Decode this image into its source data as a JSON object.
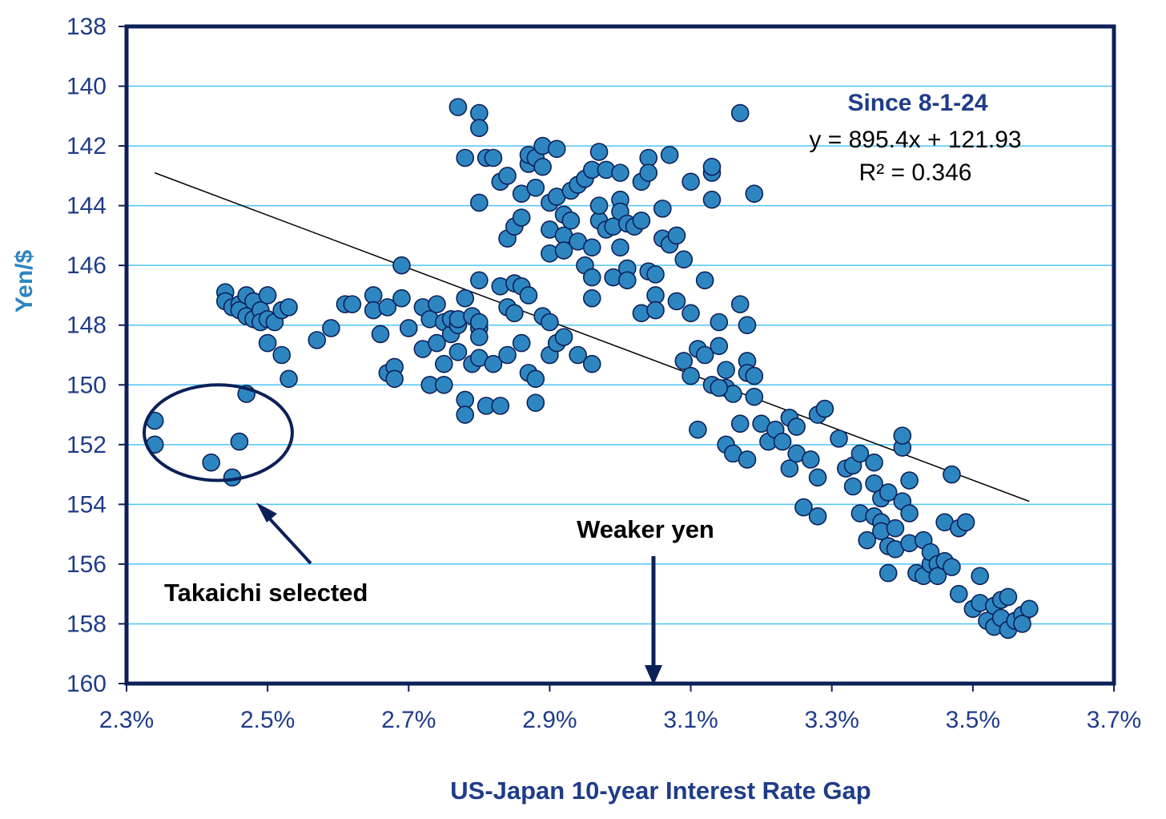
{
  "chart_data": {
    "type": "scatter",
    "title": "",
    "xlabel": "US-Japan 10-year Interest Rate Gap",
    "ylabel": "Yen/$",
    "xlim": [
      2.3,
      3.7
    ],
    "ylim": [
      138,
      160
    ],
    "y_inverted": true,
    "grid": "horizontal",
    "x_ticks": [
      {
        "value": 2.3,
        "label": "2.3%"
      },
      {
        "value": 2.5,
        "label": "2.5%"
      },
      {
        "value": 2.7,
        "label": "2.7%"
      },
      {
        "value": 2.9,
        "label": "2.9%"
      },
      {
        "value": 3.1,
        "label": "3.1%"
      },
      {
        "value": 3.3,
        "label": "3.3%"
      },
      {
        "value": 3.5,
        "label": "3.5%"
      },
      {
        "value": 3.7,
        "label": "3.7%"
      }
    ],
    "y_ticks": [
      {
        "value": 138,
        "label": "138"
      },
      {
        "value": 140,
        "label": "140"
      },
      {
        "value": 142,
        "label": "142"
      },
      {
        "value": 144,
        "label": "144"
      },
      {
        "value": 146,
        "label": "146"
      },
      {
        "value": 148,
        "label": "148"
      },
      {
        "value": 150,
        "label": "150"
      },
      {
        "value": 152,
        "label": "152"
      },
      {
        "value": 154,
        "label": "154"
      },
      {
        "value": 156,
        "label": "156"
      },
      {
        "value": 158,
        "label": "158"
      },
      {
        "value": 160,
        "label": "160"
      }
    ],
    "colors": {
      "marker_fill": "#2e86c1",
      "marker_edge": "#0c2058",
      "frame": "#0c2058",
      "grid": "#4fc3f7",
      "ticks": "#1f3c88",
      "ylabel": "#2e86c1",
      "trendline": "#000000"
    },
    "trendline": {
      "x_start": 2.34,
      "y_start": 142.9,
      "x_end": 3.58,
      "y_end": 153.9
    },
    "annotations": {
      "legend_title": "Since 8-1-24",
      "equation": "y = 895.4x + 121.93",
      "r_squared": "R² = 0.346",
      "takaichi": "Takaichi selected",
      "weaker_yen": "Weaker yen"
    },
    "highlight": {
      "label": "Takaichi selected",
      "cx": 2.43,
      "cy": 151.6,
      "rx": 0.105,
      "ry": 1.6
    },
    "series": [
      {
        "name": "",
        "points": [
          [
            2.34,
            151.2
          ],
          [
            2.34,
            152.0
          ],
          [
            2.42,
            152.6
          ],
          [
            2.45,
            153.1
          ],
          [
            2.46,
            151.9
          ],
          [
            2.47,
            150.3
          ],
          [
            2.44,
            146.9
          ],
          [
            2.44,
            147.2
          ],
          [
            2.45,
            147.4
          ],
          [
            2.46,
            147.3
          ],
          [
            2.46,
            147.5
          ],
          [
            2.47,
            147.0
          ],
          [
            2.47,
            147.7
          ],
          [
            2.48,
            147.8
          ],
          [
            2.48,
            147.2
          ],
          [
            2.49,
            147.5
          ],
          [
            2.49,
            147.9
          ],
          [
            2.5,
            147.0
          ],
          [
            2.5,
            147.8
          ],
          [
            2.51,
            147.9
          ],
          [
            2.52,
            147.5
          ],
          [
            2.53,
            147.4
          ],
          [
            2.5,
            148.6
          ],
          [
            2.52,
            149.0
          ],
          [
            2.53,
            149.8
          ],
          [
            2.57,
            148.5
          ],
          [
            2.59,
            148.1
          ],
          [
            2.61,
            147.3
          ],
          [
            2.62,
            147.3
          ],
          [
            2.65,
            147.0
          ],
          [
            2.65,
            147.5
          ],
          [
            2.66,
            148.3
          ],
          [
            2.67,
            147.4
          ],
          [
            2.67,
            149.6
          ],
          [
            2.68,
            149.4
          ],
          [
            2.68,
            149.8
          ],
          [
            2.69,
            146.0
          ],
          [
            2.69,
            147.1
          ],
          [
            2.7,
            148.1
          ],
          [
            2.72,
            148.8
          ],
          [
            2.72,
            147.4
          ],
          [
            2.73,
            150.0
          ],
          [
            2.73,
            147.8
          ],
          [
            2.74,
            147.3
          ],
          [
            2.74,
            148.6
          ],
          [
            2.75,
            149.3
          ],
          [
            2.75,
            147.9
          ],
          [
            2.75,
            150.0
          ],
          [
            2.76,
            148.3
          ],
          [
            2.76,
            147.8
          ],
          [
            2.77,
            148.9
          ],
          [
            2.77,
            148.0
          ],
          [
            2.77,
            147.8
          ],
          [
            2.78,
            150.5
          ],
          [
            2.78,
            151.0
          ],
          [
            2.78,
            147.1
          ],
          [
            2.79,
            149.3
          ],
          [
            2.79,
            147.7
          ],
          [
            2.8,
            148.1
          ],
          [
            2.8,
            147.9
          ],
          [
            2.8,
            148.4
          ],
          [
            2.8,
            149.1
          ],
          [
            2.8,
            146.5
          ],
          [
            2.81,
            150.7
          ],
          [
            2.82,
            149.3
          ],
          [
            2.83,
            150.7
          ],
          [
            2.83,
            146.7
          ],
          [
            2.84,
            149.0
          ],
          [
            2.84,
            147.4
          ],
          [
            2.85,
            146.6
          ],
          [
            2.85,
            147.6
          ],
          [
            2.86,
            148.6
          ],
          [
            2.86,
            146.7
          ],
          [
            2.87,
            147.0
          ],
          [
            2.87,
            149.6
          ],
          [
            2.88,
            149.8
          ],
          [
            2.88,
            150.6
          ],
          [
            2.89,
            147.7
          ],
          [
            2.9,
            147.9
          ],
          [
            2.9,
            149.0
          ],
          [
            2.91,
            148.6
          ],
          [
            2.92,
            148.4
          ],
          [
            2.94,
            149.0
          ],
          [
            2.96,
            149.3
          ],
          [
            2.96,
            147.1
          ],
          [
            2.77,
            140.7
          ],
          [
            2.8,
            140.9
          ],
          [
            2.8,
            141.4
          ],
          [
            2.78,
            142.4
          ],
          [
            2.81,
            142.4
          ],
          [
            2.82,
            142.4
          ],
          [
            2.83,
            143.2
          ],
          [
            2.8,
            143.9
          ],
          [
            2.84,
            143.0
          ],
          [
            2.84,
            145.1
          ],
          [
            2.85,
            144.7
          ],
          [
            2.86,
            143.6
          ],
          [
            2.86,
            144.4
          ],
          [
            2.87,
            142.6
          ],
          [
            2.87,
            142.3
          ],
          [
            2.88,
            142.4
          ],
          [
            2.88,
            143.4
          ],
          [
            2.89,
            142.0
          ],
          [
            2.89,
            142.7
          ],
          [
            2.9,
            143.9
          ],
          [
            2.9,
            144.8
          ],
          [
            2.9,
            145.6
          ],
          [
            2.91,
            142.1
          ],
          [
            2.91,
            143.7
          ],
          [
            2.92,
            144.3
          ],
          [
            2.92,
            145.0
          ],
          [
            2.92,
            145.5
          ],
          [
            2.93,
            143.5
          ],
          [
            2.93,
            144.5
          ],
          [
            2.94,
            143.3
          ],
          [
            2.94,
            145.2
          ],
          [
            2.95,
            143.1
          ],
          [
            2.95,
            146.0
          ],
          [
            2.96,
            146.4
          ],
          [
            2.96,
            142.8
          ],
          [
            2.96,
            145.4
          ],
          [
            2.97,
            144.5
          ],
          [
            2.97,
            142.2
          ],
          [
            2.97,
            144.0
          ],
          [
            2.98,
            142.8
          ],
          [
            2.98,
            144.8
          ],
          [
            2.99,
            144.7
          ],
          [
            2.99,
            146.4
          ],
          [
            3.0,
            142.9
          ],
          [
            3.0,
            143.8
          ],
          [
            3.0,
            144.2
          ],
          [
            3.0,
            145.4
          ],
          [
            3.01,
            146.1
          ],
          [
            3.01,
            146.5
          ],
          [
            3.01,
            144.6
          ],
          [
            3.02,
            144.7
          ],
          [
            3.03,
            143.2
          ],
          [
            3.03,
            144.5
          ],
          [
            3.03,
            147.6
          ],
          [
            3.04,
            142.4
          ],
          [
            3.04,
            142.9
          ],
          [
            3.04,
            146.2
          ],
          [
            3.05,
            146.3
          ],
          [
            3.05,
            147.0
          ],
          [
            3.05,
            147.5
          ],
          [
            3.06,
            144.1
          ],
          [
            3.06,
            145.1
          ],
          [
            3.07,
            145.3
          ],
          [
            3.07,
            142.3
          ],
          [
            3.08,
            145.0
          ],
          [
            3.08,
            147.2
          ],
          [
            3.09,
            145.8
          ],
          [
            3.09,
            149.2
          ],
          [
            3.1,
            143.2
          ],
          [
            3.1,
            147.6
          ],
          [
            3.1,
            149.7
          ],
          [
            3.11,
            148.8
          ],
          [
            3.12,
            146.5
          ],
          [
            3.12,
            149.0
          ],
          [
            3.13,
            142.9
          ],
          [
            3.13,
            143.8
          ],
          [
            3.13,
            142.7
          ],
          [
            3.14,
            147.9
          ],
          [
            3.14,
            148.7
          ],
          [
            3.15,
            150.1
          ],
          [
            3.15,
            149.5
          ],
          [
            3.16,
            150.3
          ],
          [
            3.17,
            140.9
          ],
          [
            3.17,
            147.3
          ],
          [
            3.18,
            148.0
          ],
          [
            3.18,
            149.2
          ],
          [
            3.18,
            149.6
          ],
          [
            3.19,
            143.6
          ],
          [
            3.19,
            149.7
          ],
          [
            3.11,
            151.5
          ],
          [
            3.13,
            150.0
          ],
          [
            3.14,
            150.1
          ],
          [
            3.15,
            152.0
          ],
          [
            3.16,
            152.3
          ],
          [
            3.17,
            151.3
          ],
          [
            3.18,
            152.5
          ],
          [
            3.19,
            150.4
          ],
          [
            3.2,
            151.3
          ],
          [
            3.21,
            151.9
          ],
          [
            3.22,
            151.5
          ],
          [
            3.23,
            151.9
          ],
          [
            3.24,
            151.1
          ],
          [
            3.24,
            152.8
          ],
          [
            3.25,
            151.4
          ],
          [
            3.25,
            152.3
          ],
          [
            3.26,
            154.1
          ],
          [
            3.27,
            152.5
          ],
          [
            3.28,
            151.0
          ],
          [
            3.28,
            154.4
          ],
          [
            3.28,
            153.1
          ],
          [
            3.29,
            150.8
          ],
          [
            3.31,
            151.8
          ],
          [
            3.32,
            152.8
          ],
          [
            3.33,
            152.7
          ],
          [
            3.33,
            153.4
          ],
          [
            3.34,
            154.3
          ],
          [
            3.34,
            152.3
          ],
          [
            3.35,
            155.2
          ],
          [
            3.36,
            153.3
          ],
          [
            3.36,
            152.6
          ],
          [
            3.36,
            154.4
          ],
          [
            3.37,
            153.8
          ],
          [
            3.37,
            154.6
          ],
          [
            3.37,
            154.9
          ],
          [
            3.38,
            153.6
          ],
          [
            3.38,
            155.4
          ],
          [
            3.38,
            156.3
          ],
          [
            3.39,
            155.5
          ],
          [
            3.39,
            154.8
          ],
          [
            3.4,
            152.1
          ],
          [
            3.4,
            151.7
          ],
          [
            3.4,
            153.9
          ],
          [
            3.41,
            153.2
          ],
          [
            3.41,
            154.3
          ],
          [
            3.41,
            155.3
          ],
          [
            3.42,
            156.3
          ],
          [
            3.43,
            156.4
          ],
          [
            3.43,
            155.2
          ],
          [
            3.44,
            156.0
          ],
          [
            3.44,
            155.6
          ],
          [
            3.45,
            156.0
          ],
          [
            3.45,
            156.4
          ],
          [
            3.46,
            154.6
          ],
          [
            3.46,
            155.9
          ],
          [
            3.47,
            153.0
          ],
          [
            3.47,
            156.1
          ],
          [
            3.48,
            157.0
          ],
          [
            3.48,
            154.8
          ],
          [
            3.49,
            154.6
          ],
          [
            3.5,
            157.5
          ],
          [
            3.51,
            156.4
          ],
          [
            3.51,
            157.3
          ],
          [
            3.52,
            157.9
          ],
          [
            3.53,
            157.4
          ],
          [
            3.53,
            158.1
          ],
          [
            3.54,
            157.2
          ],
          [
            3.54,
            157.8
          ],
          [
            3.55,
            158.2
          ],
          [
            3.55,
            157.1
          ],
          [
            3.56,
            157.9
          ],
          [
            3.57,
            157.7
          ],
          [
            3.57,
            158.0
          ],
          [
            3.58,
            157.5
          ]
        ]
      }
    ]
  }
}
